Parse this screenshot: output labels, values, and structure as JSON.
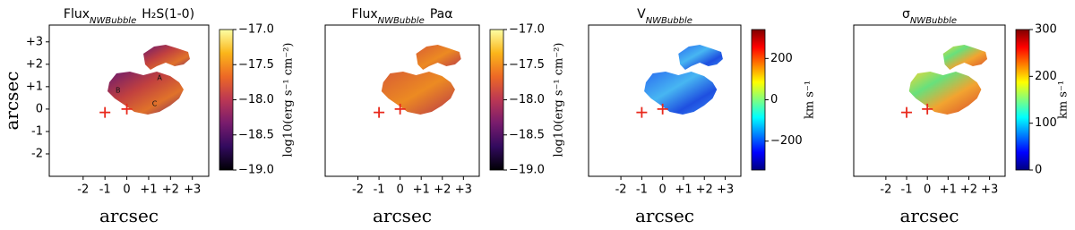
{
  "chart_data": [
    {
      "type": "map",
      "title": [
        "Flux",
        "NWBubble",
        "H₂S(1-0)"
      ],
      "xlabel": "arcsec",
      "ylabel": "arcsec",
      "xlim": [
        -3.55,
        3.75
      ],
      "ylim": [
        -3,
        3.75
      ],
      "xticks": [
        {
          "value": -2,
          "label": "-2"
        },
        {
          "value": -1,
          "label": "-1"
        },
        0,
        {
          "value": 1,
          "label": "+1"
        },
        {
          "value": 2,
          "label": "+2"
        },
        {
          "value": 3,
          "label": "+3"
        }
      ],
      "yticks": [
        {
          "value": 3,
          "label": "+3"
        },
        {
          "value": 2,
          "label": "+2"
        },
        {
          "value": 1,
          "label": "+1"
        },
        0,
        {
          "value": -1,
          "label": "-1"
        },
        {
          "value": -2,
          "label": "-2"
        }
      ],
      "markers": {
        "x": [
          -1,
          0
        ],
        "y": [
          -0.15,
          0
        ],
        "color": "#e8291c"
      },
      "annotations": [
        {
          "text": "A",
          "x": 1.5,
          "y": 1.4
        },
        {
          "text": "B",
          "x": -0.4,
          "y": 0.84
        },
        {
          "text": "C",
          "x": 1.27,
          "y": 0.24
        }
      ],
      "colorbar": {
        "label": "log10(erg s⁻¹ cm⁻²)",
        "lim": [
          -19,
          -17
        ],
        "colormap": "inferno",
        "ticks": [
          {
            "value": -19,
            "label": "−19.0"
          },
          {
            "value": -18.5,
            "label": "−18.5"
          },
          {
            "value": -18,
            "label": "−18.0"
          },
          {
            "value": -17.5,
            "label": "−17.5"
          },
          {
            "value": -17,
            "label": "−17.0"
          }
        ]
      }
    },
    {
      "type": "map",
      "title": [
        "Flux",
        "NWBubble",
        "Paα"
      ],
      "xlabel": "arcsec",
      "xlim": [
        -3.55,
        3.75
      ],
      "ylim": [
        -3,
        3.75
      ],
      "xticks": [
        {
          "value": -2,
          "label": "-2"
        },
        {
          "value": -1,
          "label": "-1"
        },
        0,
        {
          "value": 1,
          "label": "+1"
        },
        {
          "value": 2,
          "label": "+2"
        },
        {
          "value": 3,
          "label": "+3"
        }
      ],
      "markers": {
        "x": [
          -1,
          0
        ],
        "y": [
          -0.15,
          0
        ],
        "color": "#e8291c"
      },
      "colorbar": {
        "label": "log10(erg s⁻¹ cm⁻²)",
        "lim": [
          -19,
          -17
        ],
        "colormap": "inferno",
        "ticks": [
          {
            "value": -19,
            "label": "−19.0"
          },
          {
            "value": -18.5,
            "label": "−18.5"
          },
          {
            "value": -18,
            "label": "−18.0"
          },
          {
            "value": -17.5,
            "label": "−17.5"
          },
          {
            "value": -17,
            "label": "−17.0"
          }
        ]
      }
    },
    {
      "type": "map",
      "title": [
        "V",
        "NWBubble"
      ],
      "xlabel": "arcsec",
      "xlim": [
        -3.55,
        3.75
      ],
      "ylim": [
        -3,
        3.75
      ],
      "xticks": [
        {
          "value": -2,
          "label": "-2"
        },
        {
          "value": -1,
          "label": "-1"
        },
        0,
        {
          "value": 1,
          "label": "+1"
        },
        {
          "value": 2,
          "label": "+2"
        },
        {
          "value": 3,
          "label": "+3"
        }
      ],
      "markers": {
        "x": [
          -1,
          0
        ],
        "y": [
          -0.15,
          0
        ],
        "color": "#e8291c"
      },
      "colorbar": {
        "label": "km s⁻¹",
        "lim": [
          -340,
          340
        ],
        "colormap": "jet",
        "ticks": [
          {
            "value": -200,
            "label": "−200"
          },
          0,
          200
        ]
      }
    },
    {
      "type": "map",
      "title": [
        "σ",
        "NWBubble"
      ],
      "xlabel": "arcsec",
      "xlim": [
        -3.55,
        3.75
      ],
      "ylim": [
        -3,
        3.75
      ],
      "xticks": [
        {
          "value": -2,
          "label": "-2"
        },
        {
          "value": -1,
          "label": "-1"
        },
        0,
        {
          "value": 1,
          "label": "+1"
        },
        {
          "value": 2,
          "label": "+2"
        },
        {
          "value": 3,
          "label": "+3"
        }
      ],
      "markers": {
        "x": [
          -1,
          0
        ],
        "y": [
          -0.15,
          0
        ],
        "color": "#e8291c"
      },
      "colorbar": {
        "label": "km s⁻¹",
        "lim": [
          0,
          300
        ],
        "colormap": "jet",
        "ticks": [
          0,
          100,
          200,
          300
        ]
      }
    }
  ]
}
